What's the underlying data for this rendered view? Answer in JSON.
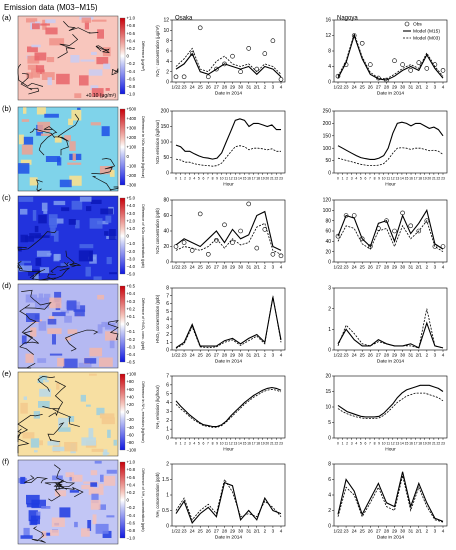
{
  "header": {
    "title": "Emission data (M03−M15)"
  },
  "panels": [
    {
      "label": "(a)",
      "cb_ticks": [
        "+1.0",
        "+0.8",
        "+0.6",
        "+0.4",
        "+0.2",
        "0",
        "−0.2",
        "−0.4",
        "−0.6",
        "−0.8",
        "−1.0"
      ],
      "cb_title": "Difference (μg/m³)",
      "map_note": "+0.10 (μg/m³)",
      "map_style": "pm"
    },
    {
      "label": "(b)",
      "cb_ticks": [
        "+500",
        "+400",
        "+300",
        "+200",
        "+100",
        "0",
        "−100",
        "−200",
        "−300"
      ],
      "cb_title": "Difference in NOx emission (kg/hour)",
      "map_note": "",
      "map_style": "nox_em"
    },
    {
      "label": "(c)",
      "cb_ticks": [
        "+5.0",
        "+4.0",
        "+3.0",
        "+2.0",
        "+1.0",
        "0",
        "−1.0",
        "−2.0",
        "−3.0",
        "−4.0",
        "−5.0"
      ],
      "cb_title": "Difference of NOx concentration (ppb)",
      "map_note": "",
      "map_style": "nox_c"
    },
    {
      "label": "(d)",
      "cb_ticks": [
        "+0.5",
        "+0.4",
        "+0.3",
        "+0.2",
        "+0.1",
        "0",
        "−0.1",
        "−0.2",
        "−0.3",
        "−0.4",
        "−0.5"
      ],
      "cb_title": "Difference of HNO₃ conc. (ppb)",
      "map_note": "",
      "map_style": "hno3"
    },
    {
      "label": "(e)",
      "cb_ticks": [
        "+100",
        "+80",
        "+60",
        "+40",
        "+20",
        "0",
        "−20",
        "−40",
        "−60",
        "−80",
        "−100"
      ],
      "cb_title": "Difference in NH₃ emission (kg/hour)",
      "map_note": "",
      "map_style": "nh3_em"
    },
    {
      "label": "(f)",
      "cb_ticks": [
        "+1.0",
        "+0.8",
        "+0.6",
        "+0.4",
        "+0.2",
        "0",
        "−0.2",
        "−0.4",
        "−0.6",
        "−0.8",
        "−1.0"
      ],
      "cb_title": "Difference of NH₃ concentration (ppb)",
      "map_note": "",
      "map_style": "nh3_c"
    }
  ],
  "columns": [
    "Osaka",
    "Nagoya"
  ],
  "legend": {
    "obs": "Obs",
    "m15": "Model (M15)",
    "m03": "Model (M03)"
  },
  "colors": {
    "red": "#d7191c",
    "blue": "#1a3fe0",
    "cyan": "#7fd3ea",
    "peach": "#f6b8ae",
    "lavender": "#b5b9f2"
  },
  "date_ticks": [
    "1/22",
    "23",
    "24",
    "25",
    "26",
    "27",
    "28",
    "29",
    "30",
    "31",
    "2/1",
    "2",
    "3",
    "4"
  ],
  "hour_ticks": [
    "0",
    "1",
    "2",
    "3",
    "4",
    "5",
    "6",
    "7",
    "8",
    "9",
    "10",
    "11",
    "12",
    "13",
    "14",
    "15",
    "16",
    "17",
    "18",
    "19",
    "20",
    "21",
    "22",
    "23"
  ],
  "chart_data": [
    {
      "type": "scatter",
      "row": "a",
      "city": "Osaka",
      "xlabel": "Date in 2014",
      "ylabel": "NO₃⁻ concentration (μg/m³)",
      "ylim": [
        0,
        12
      ],
      "yticks": [
        0,
        2,
        4,
        6,
        8,
        10,
        12
      ],
      "xaxis": "date",
      "series": [
        {
          "name": "Model (M15)",
          "values": [
            2.5,
            3.5,
            5.5,
            2.0,
            1.5,
            2.5,
            3.5,
            3.0,
            2.5,
            3.0,
            1.5,
            3.0,
            2.5,
            1.0
          ]
        },
        {
          "name": "Model (M03)",
          "values": [
            3.0,
            4.5,
            6.5,
            2.5,
            2.0,
            4.0,
            5.0,
            3.5,
            3.0,
            3.5,
            2.0,
            3.5,
            3.0,
            1.5
          ]
        },
        {
          "name": "Obs",
          "values": [
            1.0,
            1.0,
            5.5,
            10.5,
            1.0,
            2.5,
            3.5,
            5.0,
            2.0,
            6.5,
            2.5,
            5.5,
            8.0,
            0.5
          ]
        }
      ]
    },
    {
      "type": "scatter",
      "row": "a",
      "city": "Nagoya",
      "xlabel": "Date in 2014",
      "ylabel": "",
      "ylim": [
        0,
        16
      ],
      "yticks": [
        0,
        4,
        8,
        12,
        16
      ],
      "xaxis": "date",
      "series": [
        {
          "name": "Model (M15)",
          "values": [
            1.0,
            5.0,
            12.0,
            6.0,
            2.0,
            0.8,
            0.5,
            1.5,
            3.0,
            4.0,
            3.0,
            7.0,
            3.5,
            1.0
          ]
        },
        {
          "name": "Model (M03)",
          "values": [
            1.5,
            5.5,
            12.5,
            6.5,
            2.5,
            1.0,
            0.8,
            2.0,
            3.5,
            4.5,
            3.5,
            7.5,
            4.0,
            1.5
          ]
        },
        {
          "name": "Obs",
          "values": [
            1.5,
            4.5,
            12.0,
            10.0,
            4.5,
            1.0,
            0.5,
            5.5,
            4.5,
            3.0,
            5.0,
            3.5,
            4.5,
            3.0
          ]
        }
      ]
    },
    {
      "type": "line",
      "row": "b",
      "city": "Osaka",
      "xlabel": "Hour",
      "ylabel": "NOx emission (kg/hour)",
      "ylim": [
        0,
        200
      ],
      "yticks": [
        0,
        50,
        100,
        150,
        200
      ],
      "xaxis": "hour",
      "series": [
        {
          "name": "Model (M15)",
          "values": [
            90,
            85,
            70,
            70,
            62,
            55,
            50,
            48,
            45,
            48,
            65,
            100,
            135,
            170,
            175,
            170,
            150,
            160,
            160,
            155,
            150,
            155,
            140,
            140
          ]
        },
        {
          "name": "Model (M03)",
          "values": [
            45,
            42,
            35,
            35,
            30,
            27,
            25,
            24,
            22,
            24,
            32,
            50,
            68,
            85,
            88,
            85,
            75,
            80,
            80,
            78,
            75,
            78,
            70,
            70
          ]
        }
      ]
    },
    {
      "type": "line",
      "row": "b",
      "city": "Nagoya",
      "xlabel": "Hour",
      "ylabel": "",
      "ylim": [
        0,
        250
      ],
      "yticks": [
        0,
        50,
        100,
        150,
        200,
        250
      ],
      "xaxis": "hour",
      "series": [
        {
          "name": "Model (M15)",
          "values": [
            110,
            100,
            90,
            80,
            70,
            62,
            58,
            55,
            55,
            60,
            70,
            100,
            160,
            200,
            205,
            200,
            190,
            200,
            200,
            190,
            180,
            185,
            175,
            150
          ]
        },
        {
          "name": "Model (M03)",
          "values": [
            60,
            55,
            50,
            45,
            40,
            35,
            32,
            30,
            30,
            32,
            38,
            55,
            80,
            100,
            102,
            100,
            95,
            100,
            100,
            95,
            90,
            92,
            88,
            75
          ]
        }
      ]
    },
    {
      "type": "scatter",
      "row": "c",
      "city": "Osaka",
      "xlabel": "",
      "ylabel": "NOx concentration (ppb)",
      "ylim": [
        0,
        80
      ],
      "yticks": [
        0,
        20,
        40,
        60,
        80
      ],
      "xaxis": "date",
      "series": [
        {
          "name": "Model (M15)",
          "values": [
            22,
            30,
            25,
            20,
            30,
            40,
            25,
            42,
            30,
            35,
            60,
            65,
            20,
            15
          ]
        },
        {
          "name": "Model (M03)",
          "values": [
            15,
            20,
            18,
            15,
            20,
            30,
            18,
            30,
            22,
            25,
            45,
            50,
            15,
            10
          ]
        },
        {
          "name": "Obs",
          "values": [
            20,
            25,
            15,
            62,
            10,
            28,
            48,
            25,
            40,
            75,
            18,
            42,
            10,
            8
          ]
        }
      ]
    },
    {
      "type": "scatter",
      "row": "c",
      "city": "Nagoya",
      "xlabel": "",
      "ylabel": "",
      "ylim": [
        0,
        120
      ],
      "yticks": [
        0,
        20,
        40,
        60,
        80,
        100,
        120
      ],
      "xaxis": "date",
      "series": [
        {
          "name": "Model (M15)",
          "values": [
            50,
            90,
            85,
            45,
            30,
            75,
            80,
            40,
            90,
            55,
            75,
            100,
            35,
            25
          ]
        },
        {
          "name": "Model (M03)",
          "values": [
            40,
            70,
            65,
            35,
            25,
            60,
            65,
            30,
            70,
            45,
            60,
            80,
            30,
            20
          ]
        },
        {
          "name": "Obs",
          "values": [
            50,
            90,
            90,
            45,
            30,
            65,
            80,
            60,
            95,
            70,
            60,
            80,
            30,
            30
          ]
        }
      ]
    },
    {
      "type": "line",
      "row": "d",
      "city": "Osaka",
      "xlabel": "Date in 2014",
      "ylabel": "HNO₃ concentration (ppb)",
      "ylim": [
        0,
        8
      ],
      "yticks": [
        0,
        1,
        2,
        3,
        4,
        5,
        6,
        7,
        8
      ],
      "xaxis": "date",
      "series": [
        {
          "name": "Model (M15)",
          "values": [
            0.3,
            1.0,
            3.3,
            0.5,
            0.5,
            0.5,
            1.2,
            1.5,
            0.8,
            1.5,
            2.0,
            1.0,
            6.8,
            1.3
          ]
        },
        {
          "name": "Model (M03)",
          "values": [
            0.2,
            0.8,
            3.0,
            0.4,
            0.3,
            0.4,
            1.0,
            1.3,
            0.6,
            1.2,
            1.8,
            0.8,
            7.0,
            1.0
          ]
        }
      ]
    },
    {
      "type": "line",
      "row": "d",
      "city": "Nagoya",
      "xlabel": "Date in 2014",
      "ylabel": "",
      "ylim": [
        0,
        3
      ],
      "yticks": [
        0,
        1,
        2,
        3
      ],
      "xaxis": "date",
      "series": [
        {
          "name": "Model (M15)",
          "values": [
            0.3,
            1.0,
            0.5,
            0.2,
            0.2,
            0.5,
            0.3,
            0.2,
            0.2,
            0.3,
            0.1,
            1.3,
            0.2,
            0.1
          ]
        },
        {
          "name": "Model (M03)",
          "values": [
            0.2,
            1.2,
            0.8,
            0.3,
            0.2,
            0.4,
            0.3,
            0.2,
            0.2,
            0.2,
            0.1,
            2.0,
            0.2,
            0.1
          ]
        }
      ]
    },
    {
      "type": "line",
      "row": "e",
      "city": "Osaka",
      "xlabel": "Hour",
      "ylabel": "NH₃ emission (kg/hour)",
      "ylim": [
        0,
        7
      ],
      "yticks": [
        0,
        1,
        2,
        3,
        4,
        5,
        6,
        7
      ],
      "xaxis": "hour",
      "series": [
        {
          "name": "Model (M15)",
          "values": [
            4.2,
            3.6,
            3.1,
            2.6,
            2.2,
            1.8,
            1.5,
            1.4,
            1.3,
            1.3,
            1.5,
            1.9,
            2.5,
            3.0,
            3.5,
            4.0,
            4.4,
            4.8,
            5.1,
            5.4,
            5.6,
            5.7,
            5.6,
            5.4
          ]
        },
        {
          "name": "Model (M03)",
          "values": [
            3.8,
            3.3,
            2.9,
            2.4,
            2.0,
            1.7,
            1.4,
            1.3,
            1.2,
            1.2,
            1.4,
            1.8,
            2.3,
            2.8,
            3.3,
            3.8,
            4.2,
            4.6,
            4.9,
            5.2,
            5.4,
            5.5,
            5.4,
            5.2
          ]
        }
      ]
    },
    {
      "type": "line",
      "row": "e",
      "city": "Nagoya",
      "xlabel": "Hour",
      "ylabel": "",
      "ylim": [
        0,
        20
      ],
      "yticks": [
        0,
        5,
        10,
        15,
        20
      ],
      "xaxis": "hour",
      "series": [
        {
          "name": "Model (M15)",
          "values": [
            10.5,
            9.5,
            8.5,
            8.0,
            7.5,
            7.0,
            6.8,
            6.8,
            6.8,
            7.0,
            8.0,
            9.5,
            11.0,
            13.0,
            14.5,
            15.5,
            16.0,
            16.5,
            17.0,
            17.0,
            17.0,
            16.5,
            16.0,
            15.0
          ]
        },
        {
          "name": "Model (M03)",
          "values": [
            9.5,
            8.5,
            7.8,
            7.3,
            6.8,
            6.5,
            6.3,
            6.3,
            6.3,
            6.5,
            7.3,
            8.5,
            10.0,
            11.5,
            12.5,
            13.5,
            14.0,
            14.5,
            14.5,
            14.5,
            14.0,
            13.5,
            13.0,
            12.0
          ]
        }
      ]
    },
    {
      "type": "line",
      "row": "f",
      "city": "Osaka",
      "xlabel": "Date in 2014",
      "ylabel": "NH₃ concentration (ppb)",
      "ylim": [
        0,
        2.0
      ],
      "yticks": [
        0,
        0.5,
        1.0,
        1.5,
        2.0
      ],
      "xaxis": "date",
      "series": [
        {
          "name": "Model (M15)",
          "values": [
            0.4,
            0.8,
            0.1,
            0.4,
            0.6,
            0.3,
            1.4,
            1.3,
            0.2,
            0.5,
            0.2,
            0.9,
            0.5,
            0.4
          ]
        },
        {
          "name": "Model (M03)",
          "values": [
            0.5,
            0.9,
            0.2,
            0.5,
            0.7,
            0.4,
            1.5,
            1.1,
            0.3,
            0.4,
            0.3,
            0.8,
            0.6,
            0.3
          ]
        }
      ]
    },
    {
      "type": "line",
      "row": "f",
      "city": "Nagoya",
      "xlabel": "Date in 2014",
      "ylabel": "",
      "ylim": [
        0,
        8
      ],
      "yticks": [
        0,
        2,
        4,
        6,
        8
      ],
      "xaxis": "date",
      "series": [
        {
          "name": "Model (M15)",
          "values": [
            1.5,
            6.0,
            4.5,
            1.5,
            3.5,
            5.5,
            3.0,
            2.5,
            7.0,
            2.5,
            5.5,
            3.0,
            1.0,
            0.6
          ]
        },
        {
          "name": "Model (M03)",
          "values": [
            1.2,
            5.0,
            4.0,
            1.2,
            3.0,
            5.0,
            2.5,
            2.0,
            6.5,
            2.0,
            5.0,
            2.5,
            0.8,
            0.5
          ]
        }
      ]
    }
  ]
}
